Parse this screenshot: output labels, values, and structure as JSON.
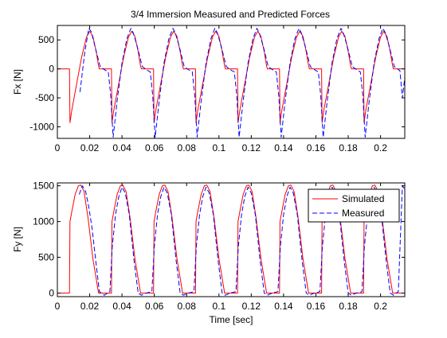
{
  "figure": {
    "title": "3/4 Immersion Measured and Predicted Forces",
    "xlabel": "Time [sec]"
  },
  "chart_data": [
    {
      "type": "line",
      "title": "3/4 Immersion Measured and Predicted Forces",
      "ylabel": "Fx [N]",
      "xlabel": "",
      "xlim": [
        0,
        0.215
      ],
      "ylim": [
        -1200,
        750
      ],
      "xticks": [
        0,
        0.02,
        0.04,
        0.06,
        0.08,
        0.1,
        0.12,
        0.14,
        0.16,
        0.18,
        0.2
      ],
      "xtick_labels": [
        "0",
        "0.02",
        "0.04",
        "0.06",
        "0.08",
        "0.1",
        "0.12",
        "0.14",
        "0.16",
        "0.18",
        "0.2"
      ],
      "yticks": [
        -1000,
        -500,
        0,
        500
      ],
      "ytick_labels": [
        "-1000",
        "-500",
        "0",
        "500"
      ],
      "grid": false,
      "series": [
        {
          "name": "Simulated",
          "color": "#ff0000",
          "dash": "solid",
          "x": [
            0,
            0.0075,
            0.0078,
            0.009,
            0.012,
            0.015,
            0.018,
            0.02,
            0.022,
            0.024,
            0.0255,
            0.026,
            0.0335,
            0.0338,
            0.035,
            0.038,
            0.041,
            0.044,
            0.046,
            0.048,
            0.05,
            0.0515,
            0.052,
            0.0595,
            0.0598,
            0.061,
            0.064,
            0.067,
            0.07,
            0.072,
            0.074,
            0.076,
            0.0775,
            0.078,
            0.0855,
            0.0858,
            0.087,
            0.09,
            0.093,
            0.096,
            0.098,
            0.1,
            0.102,
            0.1035,
            0.104,
            0.1115,
            0.1118,
            0.113,
            0.116,
            0.119,
            0.122,
            0.124,
            0.126,
            0.128,
            0.1295,
            0.13,
            0.1375,
            0.1378,
            0.139,
            0.142,
            0.145,
            0.148,
            0.15,
            0.152,
            0.154,
            0.1555,
            0.156,
            0.1635,
            0.1638,
            0.165,
            0.168,
            0.171,
            0.174,
            0.176,
            0.178,
            0.18,
            0.1815,
            0.182,
            0.1895,
            0.1898,
            0.191,
            0.194,
            0.197,
            0.2,
            0.202,
            0.204,
            0.206,
            0.2075,
            0.208,
            0.215
          ],
          "y": [
            0,
            0,
            -930,
            -700,
            -250,
            200,
            550,
            650,
            560,
            300,
            50,
            0,
            0,
            -930,
            -700,
            -250,
            200,
            550,
            650,
            560,
            300,
            50,
            0,
            0,
            -930,
            -700,
            -250,
            200,
            550,
            650,
            560,
            300,
            50,
            0,
            0,
            -930,
            -700,
            -250,
            200,
            550,
            650,
            560,
            300,
            50,
            0,
            0,
            -930,
            -700,
            -250,
            200,
            550,
            650,
            560,
            300,
            50,
            0,
            0,
            -930,
            -700,
            -250,
            200,
            550,
            650,
            560,
            300,
            50,
            0,
            0,
            -930,
            -700,
            -250,
            200,
            550,
            650,
            560,
            300,
            50,
            0,
            0,
            -930,
            -700,
            -250,
            200,
            550,
            650,
            560,
            300,
            50,
            0,
            0
          ]
        },
        {
          "name": "Measured",
          "color": "#0000ff",
          "dash": "dashed",
          "x": [
            0.014,
            0.017,
            0.0195,
            0.021,
            0.0235,
            0.0265,
            0.03,
            0.0315,
            0.033,
            0.0345,
            0.037,
            0.04,
            0.043,
            0.0455,
            0.047,
            0.0495,
            0.0525,
            0.056,
            0.0575,
            0.059,
            0.0605,
            0.063,
            0.066,
            0.069,
            0.0715,
            0.073,
            0.0755,
            0.0785,
            0.082,
            0.0835,
            0.085,
            0.0865,
            0.089,
            0.092,
            0.095,
            0.0975,
            0.099,
            0.1015,
            0.1045,
            0.108,
            0.1095,
            0.111,
            0.1125,
            0.115,
            0.118,
            0.121,
            0.1235,
            0.125,
            0.1275,
            0.1305,
            0.134,
            0.1355,
            0.137,
            0.1385,
            0.141,
            0.144,
            0.147,
            0.1495,
            0.151,
            0.1535,
            0.1565,
            0.16,
            0.1615,
            0.163,
            0.1645,
            0.167,
            0.17,
            0.173,
            0.1755,
            0.177,
            0.1795,
            0.1825,
            0.186,
            0.1875,
            0.189,
            0.1905,
            0.193,
            0.196,
            0.199,
            0.2015,
            0.203,
            0.2055,
            0.2085,
            0.212,
            0.2135,
            0.215
          ],
          "y": [
            -400,
            300,
            700,
            640,
            360,
            40,
            -30,
            -50,
            -450,
            -1180,
            -550,
            100,
            520,
            700,
            620,
            380,
            40,
            -30,
            -50,
            -450,
            -1180,
            -550,
            100,
            520,
            700,
            620,
            380,
            40,
            -30,
            -50,
            -450,
            -1180,
            -550,
            100,
            520,
            700,
            620,
            380,
            40,
            -30,
            -50,
            -450,
            -1180,
            -550,
            100,
            520,
            700,
            620,
            380,
            40,
            -30,
            -50,
            -450,
            -1180,
            -550,
            100,
            520,
            700,
            620,
            380,
            40,
            -30,
            -50,
            -450,
            -1180,
            -550,
            100,
            520,
            700,
            620,
            380,
            40,
            -30,
            -50,
            -450,
            -1180,
            -550,
            100,
            520,
            700,
            620,
            380,
            40,
            -30,
            -500,
            -150
          ]
        }
      ]
    },
    {
      "type": "line",
      "title": "",
      "ylabel": "Fy [N]",
      "xlabel": "Time [sec]",
      "xlim": [
        0,
        0.215
      ],
      "ylim": [
        -50,
        1540
      ],
      "xticks": [
        0,
        0.02,
        0.04,
        0.06,
        0.08,
        0.1,
        0.12,
        0.14,
        0.16,
        0.18,
        0.2
      ],
      "xtick_labels": [
        "0",
        "0.02",
        "0.04",
        "0.06",
        "0.08",
        "0.1",
        "0.12",
        "0.14",
        "0.16",
        "0.18",
        "0.2"
      ],
      "yticks": [
        0,
        500,
        1000,
        1500
      ],
      "ytick_labels": [
        "0",
        "500",
        "1000",
        "1500"
      ],
      "grid": false,
      "legend": "top-right",
      "series": [
        {
          "name": "Simulated",
          "color": "#ff0000",
          "dash": "solid",
          "x": [
            0,
            0.0075,
            0.0078,
            0.009,
            0.011,
            0.013,
            0.0145,
            0.0165,
            0.019,
            0.022,
            0.0255,
            0.026,
            0.0335,
            0.0338,
            0.035,
            0.037,
            0.039,
            0.0405,
            0.0425,
            0.045,
            0.048,
            0.0515,
            0.052,
            0.0595,
            0.0598,
            0.061,
            0.063,
            0.065,
            0.0665,
            0.0685,
            0.071,
            0.074,
            0.0775,
            0.078,
            0.0855,
            0.0858,
            0.087,
            0.089,
            0.091,
            0.0925,
            0.0945,
            0.097,
            0.1,
            0.1035,
            0.104,
            0.1115,
            0.1118,
            0.113,
            0.115,
            0.117,
            0.1185,
            0.1205,
            0.123,
            0.126,
            0.1295,
            0.13,
            0.1375,
            0.1378,
            0.139,
            0.141,
            0.143,
            0.1445,
            0.1465,
            0.149,
            0.152,
            0.1555,
            0.156,
            0.1635,
            0.1638,
            0.165,
            0.167,
            0.169,
            0.1705,
            0.1725,
            0.175,
            0.178,
            0.1815,
            0.182,
            0.1895,
            0.1898,
            0.191,
            0.193,
            0.195,
            0.1965,
            0.1985,
            0.201,
            0.204,
            0.2075,
            0.208,
            0.215
          ],
          "y": [
            0,
            0,
            1000,
            1150,
            1380,
            1500,
            1510,
            1420,
            1050,
            480,
            0,
            0,
            0,
            1000,
            1150,
            1380,
            1500,
            1510,
            1420,
            1050,
            480,
            0,
            0,
            0,
            1000,
            1150,
            1380,
            1500,
            1510,
            1420,
            1050,
            480,
            0,
            0,
            0,
            1000,
            1150,
            1380,
            1500,
            1510,
            1420,
            1050,
            480,
            0,
            0,
            0,
            1000,
            1150,
            1380,
            1500,
            1510,
            1420,
            1050,
            480,
            0,
            0,
            0,
            1000,
            1150,
            1380,
            1500,
            1510,
            1420,
            1050,
            480,
            0,
            0,
            0,
            1000,
            1150,
            1380,
            1500,
            1510,
            1420,
            1050,
            480,
            0,
            0,
            0,
            1000,
            1150,
            1380,
            1500,
            1510,
            1420,
            1050,
            480,
            0,
            0,
            0
          ]
        },
        {
          "name": "Measured",
          "color": "#0000ff",
          "dash": "dashed",
          "x": [
            0.0135,
            0.0155,
            0.0175,
            0.0195,
            0.0215,
            0.024,
            0.026,
            0.029,
            0.0325,
            0.034,
            0.036,
            0.038,
            0.04,
            0.042,
            0.0445,
            0.0475,
            0.05,
            0.052,
            0.055,
            0.0585,
            0.06,
            0.062,
            0.064,
            0.066,
            0.068,
            0.0705,
            0.0735,
            0.076,
            0.078,
            0.081,
            0.0845,
            0.086,
            0.088,
            0.09,
            0.092,
            0.094,
            0.0965,
            0.0995,
            0.102,
            0.104,
            0.107,
            0.1105,
            0.112,
            0.114,
            0.116,
            0.118,
            0.12,
            0.1225,
            0.1255,
            0.128,
            0.13,
            0.133,
            0.1365,
            0.138,
            0.14,
            0.142,
            0.144,
            0.146,
            0.1485,
            0.1515,
            0.154,
            0.156,
            0.159,
            0.1625,
            0.164,
            0.166,
            0.168,
            0.17,
            0.172,
            0.1745,
            0.1775,
            0.18,
            0.182,
            0.185,
            0.1885,
            0.19,
            0.192,
            0.194,
            0.196,
            0.198,
            0.2005,
            0.2035,
            0.206,
            0.208,
            0.211,
            0.2135,
            0.215
          ],
          "y": [
            1380,
            1500,
            1420,
            1200,
            900,
            400,
            20,
            -30,
            20,
            650,
            1100,
            1350,
            1480,
            1400,
            1100,
            450,
            0,
            -30,
            0,
            20,
            650,
            1100,
            1350,
            1480,
            1400,
            1100,
            450,
            0,
            -30,
            0,
            20,
            650,
            1100,
            1350,
            1480,
            1400,
            1100,
            450,
            0,
            -30,
            0,
            20,
            650,
            1100,
            1350,
            1480,
            1400,
            1100,
            450,
            0,
            -30,
            0,
            20,
            650,
            1100,
            1350,
            1480,
            1400,
            1100,
            450,
            0,
            -30,
            0,
            20,
            650,
            1100,
            1350,
            1480,
            1400,
            1100,
            450,
            0,
            -30,
            0,
            20,
            650,
            1100,
            1350,
            1480,
            1400,
            1100,
            450,
            0,
            -30,
            20,
            1500,
            1450
          ]
        }
      ]
    }
  ]
}
